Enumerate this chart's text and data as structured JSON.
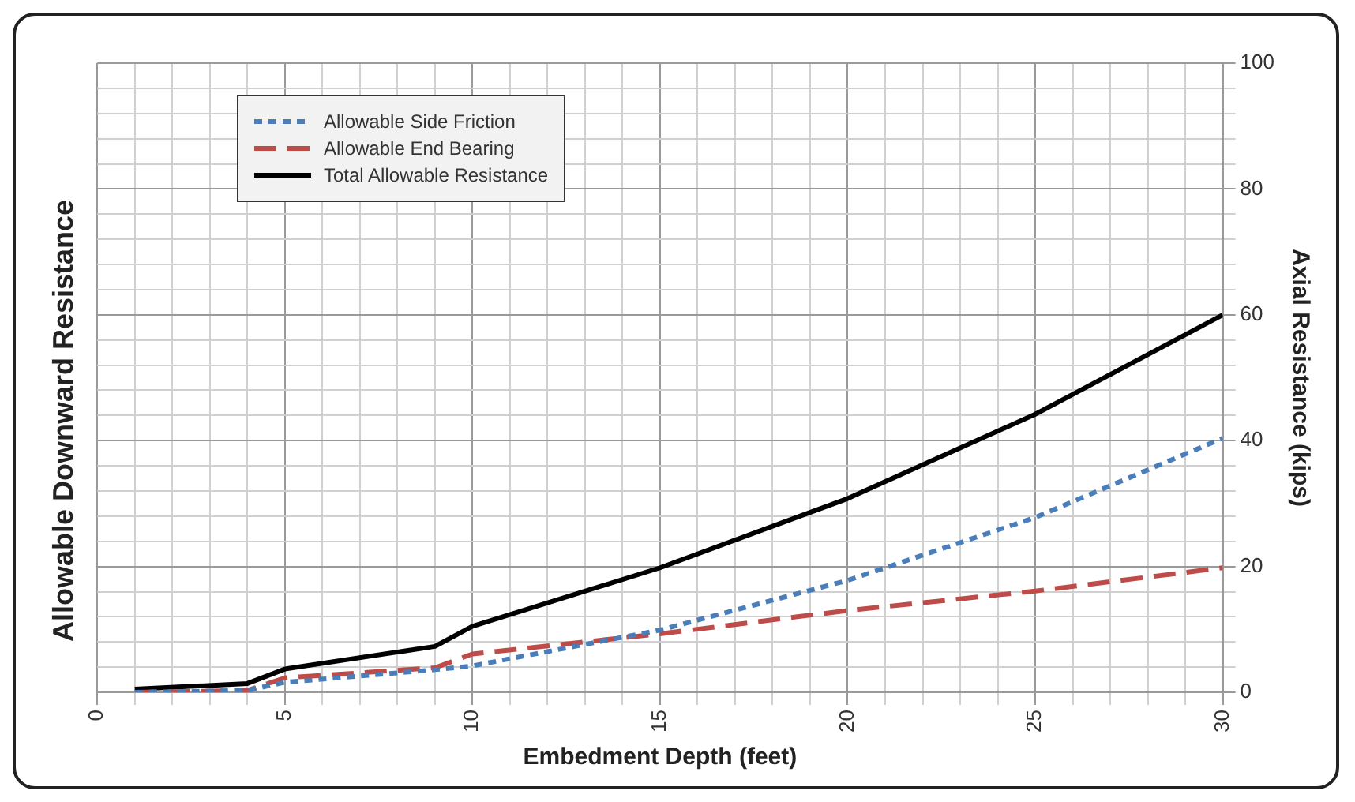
{
  "chart_data": {
    "type": "line",
    "title": "Allowable Downward Resistance",
    "xlabel": "Embedment Depth (feet)",
    "ylabel": "Axial Resistance (kips)",
    "x": [
      1,
      4,
      5,
      9,
      10,
      15,
      20,
      25,
      30
    ],
    "series": [
      {
        "name": "Allowable Side Friction",
        "color": "#4a7ebb",
        "line_style": "dotted",
        "values": [
          0,
          0.3,
          1.6,
          3.6,
          4.2,
          9.9,
          17.8,
          27.8,
          40.4
        ]
      },
      {
        "name": "Allowable End Bearing",
        "color": "#be4b48",
        "line_style": "dashed",
        "values": [
          0,
          0.3,
          2.3,
          3.9,
          6.1,
          9.3,
          13,
          16.1,
          19.8
        ]
      },
      {
        "name": "Total Allowable Resistance",
        "color": "#000000",
        "line_style": "solid",
        "values": [
          0.5,
          1.4,
          3.7,
          7.3,
          10.5,
          19.8,
          30.8,
          44.2,
          60
        ]
      }
    ],
    "xlim": [
      0,
      30
    ],
    "xticks": [
      0,
      {
        "value": 1,
        "label": null
      },
      {
        "value": 2,
        "label": null
      },
      {
        "value": 3,
        "label": null
      },
      {
        "value": 4,
        "label": null
      },
      5,
      {
        "value": 6,
        "label": null
      },
      {
        "value": 7,
        "label": null
      },
      {
        "value": 8,
        "label": null
      },
      {
        "value": 9,
        "label": null
      },
      10,
      {
        "value": 11,
        "label": null
      },
      {
        "value": 12,
        "label": null
      },
      {
        "value": 13,
        "label": null
      },
      {
        "value": 14,
        "label": null
      },
      15,
      {
        "value": 16,
        "label": null
      },
      {
        "value": 17,
        "label": null
      },
      {
        "value": 18,
        "label": null
      },
      {
        "value": 19,
        "label": null
      },
      20,
      {
        "value": 21,
        "label": null
      },
      {
        "value": 22,
        "label": null
      },
      {
        "value": 23,
        "label": null
      },
      {
        "value": 24,
        "label": null
      },
      25,
      {
        "value": 26,
        "label": null
      },
      {
        "value": 27,
        "label": null
      },
      {
        "value": 28,
        "label": null
      },
      {
        "value": 29,
        "label": null
      },
      30
    ],
    "ylim": [
      0,
      100
    ],
    "yticks": [
      0,
      {
        "value": 4,
        "label": null
      },
      {
        "value": 8,
        "label": null
      },
      {
        "value": 12,
        "label": null
      },
      {
        "value": 16,
        "label": null
      },
      20,
      {
        "value": 24,
        "label": null
      },
      {
        "value": 28,
        "label": null
      },
      {
        "value": 32,
        "label": null
      },
      {
        "value": 36,
        "label": null
      },
      40,
      {
        "value": 44,
        "label": null
      },
      {
        "value": 48,
        "label": null
      },
      {
        "value": 52,
        "label": null
      },
      {
        "value": 56,
        "label": null
      },
      60,
      {
        "value": 64,
        "label": null
      },
      {
        "value": 68,
        "label": null
      },
      {
        "value": 72,
        "label": null
      },
      {
        "value": 76,
        "label": null
      },
      80,
      {
        "value": 84,
        "label": null
      },
      {
        "value": 88,
        "label": null
      },
      {
        "value": 92,
        "label": null
      },
      {
        "value": 96,
        "label": null
      },
      100
    ],
    "grid": true,
    "legend": "top left",
    "marker": "none"
  }
}
